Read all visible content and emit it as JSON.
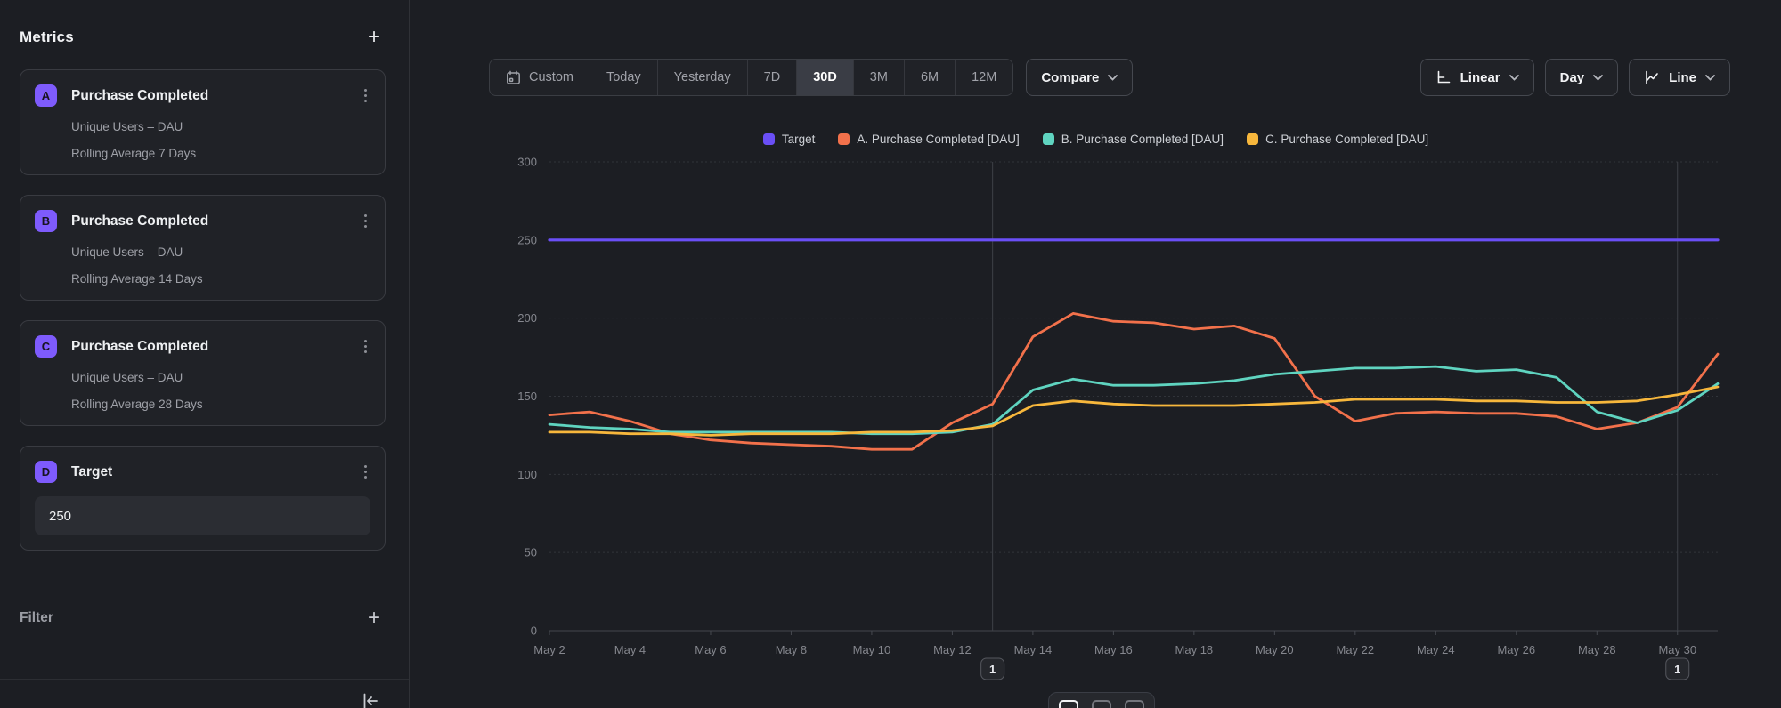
{
  "sidebar": {
    "title": "Metrics",
    "add_button": "+",
    "metrics": [
      {
        "letter": "A",
        "title": "Purchase Completed",
        "measure": "Unique Users – DAU",
        "transform": "Rolling Average 7 Days"
      },
      {
        "letter": "B",
        "title": "Purchase Completed",
        "measure": "Unique Users – DAU",
        "transform": "Rolling Average 14 Days"
      },
      {
        "letter": "C",
        "title": "Purchase Completed",
        "measure": "Unique Users – DAU",
        "transform": "Rolling Average 28 Days"
      }
    ],
    "target": {
      "letter": "D",
      "title": "Target",
      "value": "250"
    },
    "filter_label": "Filter",
    "filter_add_button": "+"
  },
  "toolbar": {
    "ranges": [
      "Custom",
      "Today",
      "Yesterday",
      "7D",
      "30D",
      "3M",
      "6M",
      "12M"
    ],
    "active_range_index": 4,
    "compare_label": "Compare",
    "scale_label": "Linear",
    "granularity_label": "Day",
    "chart_type_label": "Line"
  },
  "colors": {
    "accent_purple": "#7e5bfc",
    "target_line": "#6a4ff6",
    "series_a": "#f2714b",
    "series_b": "#5fd4c0",
    "series_c": "#f7b73c",
    "annotation_line": "#3e4147"
  },
  "chart_data": {
    "type": "line",
    "title": "",
    "xlabel": "",
    "ylabel": "",
    "ylim": [
      0,
      300
    ],
    "yticks": [
      0,
      50,
      100,
      150,
      200,
      250,
      300
    ],
    "grid": true,
    "legend_position": "top",
    "categories": [
      "May 2",
      "May 3",
      "May 4",
      "May 5",
      "May 6",
      "May 7",
      "May 8",
      "May 9",
      "May 10",
      "May 11",
      "May 12",
      "May 13",
      "May 14",
      "May 15",
      "May 16",
      "May 17",
      "May 18",
      "May 19",
      "May 20",
      "May 21",
      "May 22",
      "May 23",
      "May 24",
      "May 25",
      "May 26",
      "May 27",
      "May 28",
      "May 29",
      "May 30",
      "May 31"
    ],
    "xtick_labels": [
      "May 2",
      "May 4",
      "May 6",
      "May 8",
      "May 10",
      "May 12",
      "May 14",
      "May 16",
      "May 18",
      "May 20",
      "May 22",
      "May 24",
      "May 26",
      "May 28",
      "May 30"
    ],
    "series": [
      {
        "name": "Target",
        "color": "#6a4ff6",
        "values": [
          250,
          250,
          250,
          250,
          250,
          250,
          250,
          250,
          250,
          250,
          250,
          250,
          250,
          250,
          250,
          250,
          250,
          250,
          250,
          250,
          250,
          250,
          250,
          250,
          250,
          250,
          250,
          250,
          250,
          250
        ]
      },
      {
        "name": "A. Purchase Completed [DAU]",
        "color": "#f2714b",
        "values": [
          138,
          140,
          134,
          126,
          122,
          120,
          119,
          118,
          116,
          116,
          133,
          145,
          188,
          203,
          198,
          197,
          193,
          195,
          187,
          150,
          134,
          139,
          140,
          139,
          139,
          137,
          129,
          133,
          143,
          177
        ]
      },
      {
        "name": "B. Purchase Completed [DAU]",
        "color": "#5fd4c0",
        "values": [
          132,
          130,
          129,
          127,
          127,
          127,
          127,
          127,
          126,
          126,
          127,
          132,
          154,
          161,
          157,
          157,
          158,
          160,
          164,
          166,
          168,
          168,
          169,
          166,
          167,
          162,
          140,
          133,
          141,
          158
        ]
      },
      {
        "name": "C. Purchase Completed [DAU]",
        "color": "#f7b73c",
        "values": [
          127,
          127,
          126,
          126,
          125,
          126,
          126,
          126,
          127,
          127,
          128,
          131,
          144,
          147,
          145,
          144,
          144,
          144,
          145,
          146,
          148,
          148,
          148,
          147,
          147,
          146,
          146,
          147,
          151,
          156
        ]
      }
    ],
    "annotations": [
      {
        "index": 11,
        "date": "May 13",
        "label": "1"
      },
      {
        "index": 28,
        "date": "May 30",
        "label": "1"
      }
    ]
  }
}
